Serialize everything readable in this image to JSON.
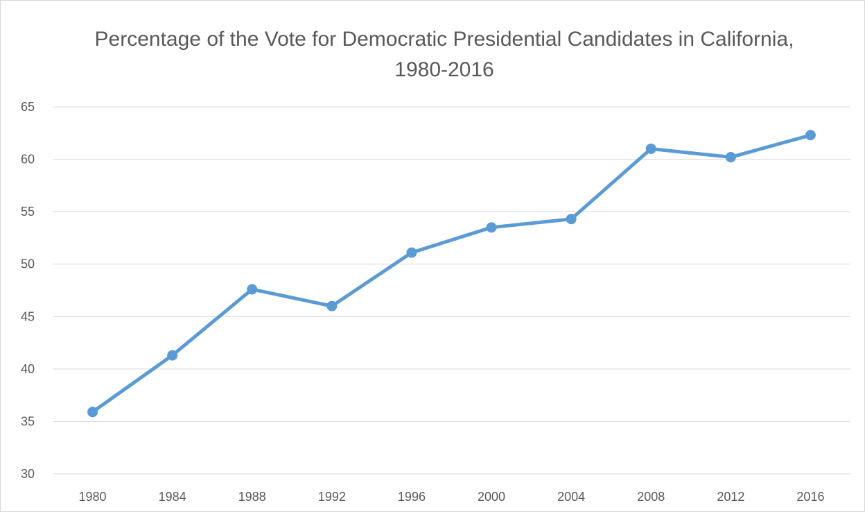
{
  "chart_data": {
    "type": "line",
    "title": "Percentage of the Vote for Democratic Presidential Candidates in California, 1980-2016",
    "xlabel": "",
    "ylabel": "",
    "categories": [
      "1980",
      "1984",
      "1988",
      "1992",
      "1996",
      "2000",
      "2004",
      "2008",
      "2012",
      "2016"
    ],
    "series": [
      {
        "values": [
          35.9,
          41.3,
          47.6,
          46.0,
          51.1,
          53.5,
          54.3,
          61.0,
          60.2,
          62.3
        ]
      }
    ],
    "ylim": [
      30,
      65
    ],
    "yticks": [
      30,
      35,
      40,
      45,
      50,
      55,
      60,
      65
    ],
    "grid": true,
    "legend": "none",
    "colors": {
      "series": "#5b9bd5",
      "grid": "#d9d9d9",
      "text": "#595959"
    }
  }
}
